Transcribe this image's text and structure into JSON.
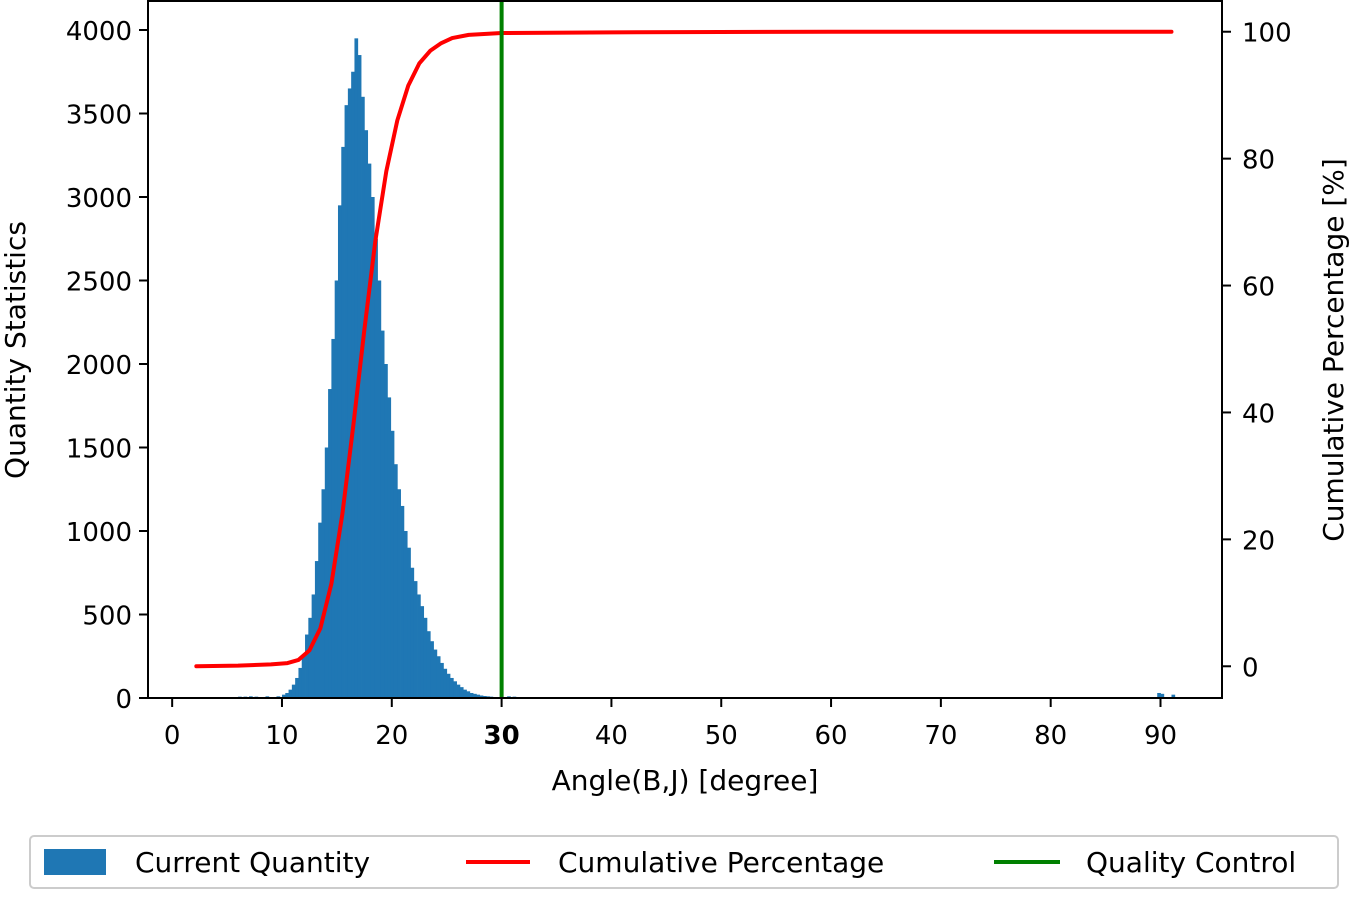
{
  "chart_data": {
    "type": "bar",
    "title": "",
    "xlabel": "Angle(B,J) [degree]",
    "ylabel": "Quantity Statistics",
    "y2label": "Cumulative Percentage [%]",
    "xlim": [
      -2.2,
      95.6
    ],
    "ylim": [
      0,
      4000
    ],
    "y2lim": [
      -5,
      105
    ],
    "xticks": [
      0,
      10,
      20,
      30,
      40,
      50,
      60,
      70,
      80,
      90
    ],
    "highlight_xtick": 30,
    "yticks": [
      0,
      500,
      1000,
      1500,
      2000,
      2500,
      3000,
      3500,
      4000
    ],
    "y2ticks": [
      0,
      20,
      40,
      60,
      80,
      100
    ],
    "legend_position": "bottom",
    "bin_width": 0.3,
    "series": [
      {
        "name": "Current Quantity",
        "type": "bar",
        "color": "#1f77b4",
        "x": [
          5.0,
          5.5,
          6.0,
          6.5,
          7.0,
          7.5,
          8.0,
          8.5,
          9.0,
          9.5,
          10.0,
          10.3,
          10.6,
          10.9,
          11.2,
          11.5,
          11.8,
          12.1,
          12.4,
          12.7,
          13.0,
          13.3,
          13.6,
          13.9,
          14.2,
          14.5,
          14.8,
          15.1,
          15.4,
          15.7,
          16.0,
          16.3,
          16.6,
          16.9,
          17.2,
          17.5,
          17.8,
          18.1,
          18.4,
          18.7,
          19.0,
          19.3,
          19.6,
          19.9,
          20.2,
          20.5,
          20.8,
          21.1,
          21.4,
          21.7,
          22.0,
          22.3,
          22.6,
          22.9,
          23.2,
          23.5,
          23.8,
          24.1,
          24.4,
          24.7,
          25.0,
          25.3,
          25.6,
          25.9,
          26.2,
          26.5,
          26.8,
          27.1,
          27.4,
          27.7,
          28.0,
          28.3,
          28.6,
          28.9,
          29.2,
          29.5,
          30.5,
          31.0,
          31.5,
          32.0,
          33.0,
          34.0,
          35.0,
          89.7,
          90.0,
          91.0
        ],
        "values": [
          5,
          5,
          8,
          8,
          10,
          8,
          5,
          10,
          5,
          10,
          20,
          30,
          50,
          80,
          120,
          180,
          260,
          380,
          480,
          620,
          820,
          1050,
          1250,
          1500,
          1850,
          2150,
          2500,
          2950,
          3300,
          3550,
          3650,
          3750,
          3950,
          3850,
          3600,
          3400,
          3200,
          3000,
          2750,
          2500,
          2200,
          2000,
          1800,
          1600,
          1400,
          1250,
          1150,
          1000,
          900,
          780,
          700,
          620,
          550,
          480,
          400,
          340,
          290,
          250,
          210,
          175,
          145,
          120,
          100,
          80,
          65,
          50,
          40,
          30,
          25,
          20,
          15,
          12,
          10,
          8,
          6,
          5,
          10,
          8,
          6,
          5,
          4,
          4,
          3,
          30,
          25,
          20
        ]
      },
      {
        "name": "Cumulative Percentage",
        "type": "line",
        "color": "#ff0000",
        "x": [
          2.2,
          6,
          9,
          10.5,
          11.5,
          12.5,
          13.5,
          14.5,
          15.5,
          16.5,
          17.5,
          18.5,
          19.5,
          20.5,
          21.5,
          22.5,
          23.5,
          24.5,
          25.5,
          27,
          30,
          40,
          60,
          91
        ],
        "values": [
          0,
          0.1,
          0.3,
          0.5,
          1.0,
          2.5,
          6,
          13,
          24,
          38,
          53,
          67,
          78,
          86,
          91.5,
          95,
          97,
          98.2,
          99,
          99.5,
          99.8,
          99.9,
          100,
          100
        ]
      },
      {
        "name": "Quality Control",
        "type": "vline",
        "color": "#008000",
        "x": 30
      }
    ]
  }
}
